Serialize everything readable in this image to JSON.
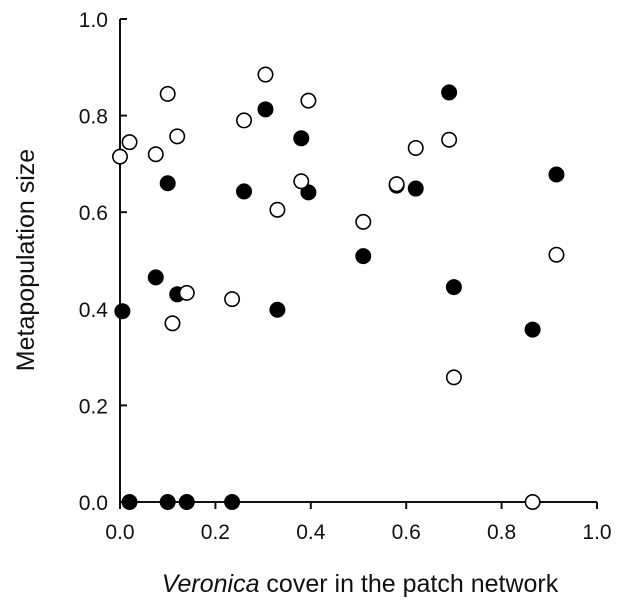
{
  "chart_data": {
    "type": "scatter",
    "title": "",
    "xlabel_italic": "Veronica",
    "xlabel_rest": " cover in the patch network",
    "ylabel": "Metapopulation size",
    "xlim": [
      0.0,
      1.0
    ],
    "ylim": [
      0.0,
      1.0
    ],
    "xticks": [
      "0.0",
      "0.2",
      "0.4",
      "0.6",
      "0.8",
      "1.0"
    ],
    "yticks": [
      "0.0",
      "0.2",
      "0.4",
      "0.6",
      "0.8",
      "1.0"
    ],
    "grid": false,
    "legend": "none",
    "series": [
      {
        "marker": "filled-circle",
        "color": "#000000",
        "points": [
          [
            0.005,
            0.395
          ],
          [
            0.02,
            0.0
          ],
          [
            0.075,
            0.465
          ],
          [
            0.1,
            0.66
          ],
          [
            0.1,
            0.0
          ],
          [
            0.12,
            0.43
          ],
          [
            0.14,
            0.0
          ],
          [
            0.235,
            0.0
          ],
          [
            0.26,
            0.643
          ],
          [
            0.305,
            0.813
          ],
          [
            0.33,
            0.398
          ],
          [
            0.38,
            0.753
          ],
          [
            0.395,
            0.641
          ],
          [
            0.51,
            0.509
          ],
          [
            0.58,
            0.655
          ],
          [
            0.62,
            0.649
          ],
          [
            0.69,
            0.848
          ],
          [
            0.7,
            0.445
          ],
          [
            0.865,
            0.357
          ],
          [
            0.915,
            0.678
          ]
        ]
      },
      {
        "marker": "open-circle",
        "color": "#ffffff",
        "points": [
          [
            0.0,
            0.715
          ],
          [
            0.02,
            0.745
          ],
          [
            0.075,
            0.72
          ],
          [
            0.1,
            0.845
          ],
          [
            0.11,
            0.37
          ],
          [
            0.12,
            0.757
          ],
          [
            0.14,
            0.433
          ],
          [
            0.235,
            0.42
          ],
          [
            0.26,
            0.79
          ],
          [
            0.305,
            0.885
          ],
          [
            0.33,
            0.605
          ],
          [
            0.38,
            0.664
          ],
          [
            0.395,
            0.831
          ],
          [
            0.51,
            0.58
          ],
          [
            0.58,
            0.658
          ],
          [
            0.62,
            0.733
          ],
          [
            0.69,
            0.75
          ],
          [
            0.7,
            0.258
          ],
          [
            0.865,
            0.0
          ],
          [
            0.915,
            0.512
          ]
        ]
      }
    ]
  }
}
